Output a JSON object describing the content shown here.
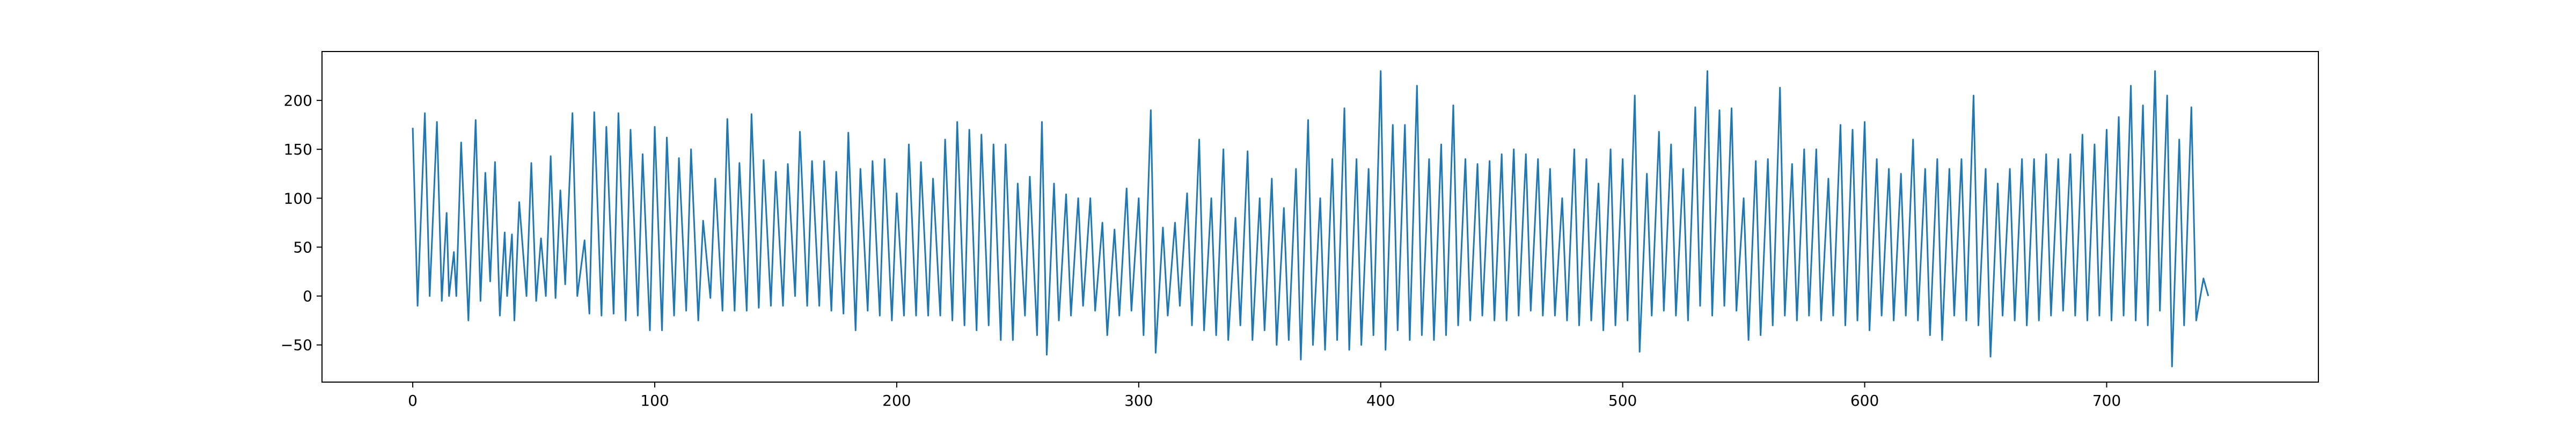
{
  "chart_data": {
    "type": "line",
    "title": "",
    "xlabel": "",
    "ylabel": "",
    "xlim": [
      -37.5,
      787.5
    ],
    "ylim": [
      -88,
      250
    ],
    "grid": false,
    "legend": "none",
    "line_color": "#1f77b4",
    "x_ticks": [
      0,
      100,
      200,
      300,
      400,
      500,
      600,
      700
    ],
    "x_tick_labels": [
      "0",
      "100",
      "200",
      "300",
      "400",
      "500",
      "600",
      "700"
    ],
    "y_ticks": [
      -50,
      0,
      50,
      100,
      150,
      200
    ],
    "y_tick_labels": [
      "−50",
      "0",
      "50",
      "100",
      "150",
      "200"
    ],
    "series": [
      {
        "peaks": [
          [
            0,
            172
          ],
          [
            5,
            187
          ],
          [
            10,
            178
          ],
          [
            14,
            85
          ],
          [
            17,
            45
          ],
          [
            20,
            157
          ],
          [
            26,
            180
          ],
          [
            30,
            126
          ],
          [
            34,
            137
          ],
          [
            38,
            65
          ],
          [
            41,
            63
          ],
          [
            44,
            96
          ],
          [
            49,
            136
          ],
          [
            53,
            59
          ],
          [
            57,
            143
          ],
          [
            61,
            108
          ],
          [
            66,
            187
          ],
          [
            71,
            57
          ],
          [
            75,
            188
          ],
          [
            80,
            173
          ],
          [
            85,
            187
          ],
          [
            90,
            170
          ],
          [
            95,
            145
          ],
          [
            100,
            173
          ],
          [
            105,
            162
          ],
          [
            110,
            141
          ],
          [
            115,
            150
          ],
          [
            120,
            77
          ],
          [
            125,
            120
          ],
          [
            130,
            181
          ],
          [
            135,
            136
          ],
          [
            140,
            186
          ],
          [
            145,
            139
          ],
          [
            150,
            127
          ],
          [
            155,
            135
          ],
          [
            160,
            168
          ],
          [
            165,
            138
          ],
          [
            170,
            138
          ],
          [
            175,
            127
          ],
          [
            180,
            167
          ],
          [
            185,
            130
          ],
          [
            190,
            138
          ],
          [
            195,
            140
          ],
          [
            200,
            105
          ],
          [
            205,
            155
          ],
          [
            210,
            137
          ],
          [
            215,
            120
          ],
          [
            220,
            160
          ],
          [
            225,
            178
          ],
          [
            230,
            170
          ],
          [
            235,
            165
          ],
          [
            240,
            155
          ],
          [
            245,
            155
          ],
          [
            250,
            115
          ],
          [
            255,
            122
          ],
          [
            260,
            178
          ],
          [
            265,
            115
          ],
          [
            270,
            104
          ],
          [
            275,
            100
          ],
          [
            280,
            100
          ],
          [
            285,
            75
          ],
          [
            290,
            68
          ],
          [
            295,
            110
          ],
          [
            300,
            100
          ],
          [
            305,
            190
          ],
          [
            310,
            70
          ],
          [
            315,
            75
          ],
          [
            320,
            105
          ],
          [
            325,
            160
          ],
          [
            330,
            100
          ],
          [
            335,
            150
          ],
          [
            340,
            80
          ],
          [
            345,
            148
          ],
          [
            350,
            100
          ],
          [
            355,
            120
          ],
          [
            360,
            90
          ],
          [
            365,
            130
          ],
          [
            370,
            180
          ],
          [
            375,
            100
          ],
          [
            380,
            140
          ],
          [
            385,
            192
          ],
          [
            390,
            140
          ],
          [
            395,
            130
          ],
          [
            400,
            230
          ],
          [
            405,
            175
          ],
          [
            410,
            175
          ],
          [
            415,
            215
          ],
          [
            420,
            140
          ],
          [
            425,
            155
          ],
          [
            430,
            195
          ],
          [
            435,
            140
          ],
          [
            440,
            135
          ],
          [
            445,
            138
          ],
          [
            450,
            145
          ],
          [
            455,
            150
          ],
          [
            460,
            145
          ],
          [
            465,
            140
          ],
          [
            470,
            130
          ],
          [
            475,
            100
          ],
          [
            480,
            150
          ],
          [
            485,
            140
          ],
          [
            490,
            115
          ],
          [
            495,
            150
          ],
          [
            500,
            140
          ],
          [
            505,
            205
          ],
          [
            510,
            125
          ],
          [
            515,
            168
          ],
          [
            520,
            155
          ],
          [
            525,
            130
          ],
          [
            530,
            193
          ],
          [
            535,
            230
          ],
          [
            540,
            190
          ],
          [
            545,
            192
          ],
          [
            550,
            100
          ],
          [
            555,
            138
          ],
          [
            560,
            140
          ],
          [
            565,
            213
          ],
          [
            570,
            135
          ],
          [
            575,
            150
          ],
          [
            580,
            150
          ],
          [
            585,
            120
          ],
          [
            590,
            175
          ],
          [
            595,
            170
          ],
          [
            600,
            178
          ],
          [
            605,
            140
          ],
          [
            610,
            130
          ],
          [
            615,
            125
          ],
          [
            620,
            160
          ],
          [
            625,
            130
          ],
          [
            630,
            140
          ],
          [
            635,
            130
          ],
          [
            640,
            140
          ],
          [
            645,
            205
          ],
          [
            650,
            130
          ],
          [
            655,
            115
          ],
          [
            660,
            130
          ],
          [
            665,
            140
          ],
          [
            670,
            140
          ],
          [
            675,
            145
          ],
          [
            680,
            140
          ],
          [
            685,
            145
          ],
          [
            690,
            165
          ],
          [
            695,
            155
          ],
          [
            700,
            170
          ],
          [
            705,
            183
          ],
          [
            710,
            215
          ],
          [
            715,
            195
          ],
          [
            720,
            230
          ],
          [
            725,
            205
          ],
          [
            730,
            160
          ],
          [
            735,
            193
          ],
          [
            740,
            18
          ]
        ],
        "troughs": [
          [
            2,
            -10
          ],
          [
            7,
            0
          ],
          [
            12,
            -5
          ],
          [
            15,
            0
          ],
          [
            18,
            0
          ],
          [
            23,
            -25
          ],
          [
            28,
            -5
          ],
          [
            32,
            15
          ],
          [
            36,
            -20
          ],
          [
            39,
            0
          ],
          [
            42,
            -25
          ],
          [
            47,
            0
          ],
          [
            51,
            -5
          ],
          [
            55,
            0
          ],
          [
            59,
            -2
          ],
          [
            63,
            12
          ],
          [
            68,
            0
          ],
          [
            73,
            -18
          ],
          [
            78,
            -20
          ],
          [
            83,
            -18
          ],
          [
            88,
            -25
          ],
          [
            93,
            -20
          ],
          [
            98,
            -35
          ],
          [
            103,
            -35
          ],
          [
            108,
            -20
          ],
          [
            113,
            -15
          ],
          [
            118,
            -25
          ],
          [
            123,
            -2
          ],
          [
            128,
            -15
          ],
          [
            133,
            -15
          ],
          [
            138,
            -15
          ],
          [
            143,
            -12
          ],
          [
            148,
            -10
          ],
          [
            153,
            -10
          ],
          [
            158,
            0
          ],
          [
            163,
            -10
          ],
          [
            168,
            -10
          ],
          [
            173,
            -15
          ],
          [
            178,
            -18
          ],
          [
            183,
            -35
          ],
          [
            188,
            -15
          ],
          [
            193,
            -20
          ],
          [
            198,
            -25
          ],
          [
            203,
            -20
          ],
          [
            208,
            -20
          ],
          [
            213,
            -20
          ],
          [
            218,
            -20
          ],
          [
            223,
            -25
          ],
          [
            228,
            -30
          ],
          [
            233,
            -35
          ],
          [
            238,
            -30
          ],
          [
            243,
            -45
          ],
          [
            248,
            -45
          ],
          [
            253,
            -20
          ],
          [
            258,
            -40
          ],
          [
            262,
            -60
          ],
          [
            267,
            -25
          ],
          [
            272,
            -20
          ],
          [
            277,
            -10
          ],
          [
            282,
            -15
          ],
          [
            287,
            -40
          ],
          [
            292,
            -20
          ],
          [
            297,
            -15
          ],
          [
            302,
            -40
          ],
          [
            307,
            -58
          ],
          [
            312,
            -20
          ],
          [
            317,
            -10
          ],
          [
            322,
            -30
          ],
          [
            327,
            -35
          ],
          [
            332,
            -40
          ],
          [
            337,
            -45
          ],
          [
            342,
            -30
          ],
          [
            347,
            -45
          ],
          [
            352,
            -35
          ],
          [
            357,
            -50
          ],
          [
            362,
            -45
          ],
          [
            367,
            -65
          ],
          [
            372,
            -50
          ],
          [
            377,
            -55
          ],
          [
            382,
            -45
          ],
          [
            387,
            -55
          ],
          [
            392,
            -50
          ],
          [
            397,
            -40
          ],
          [
            402,
            -55
          ],
          [
            407,
            -35
          ],
          [
            412,
            -45
          ],
          [
            417,
            -40
          ],
          [
            422,
            -45
          ],
          [
            427,
            -40
          ],
          [
            432,
            -30
          ],
          [
            437,
            -25
          ],
          [
            442,
            -20
          ],
          [
            447,
            -25
          ],
          [
            452,
            -25
          ],
          [
            457,
            -20
          ],
          [
            462,
            -15
          ],
          [
            467,
            -20
          ],
          [
            472,
            -20
          ],
          [
            477,
            -25
          ],
          [
            482,
            -30
          ],
          [
            487,
            -25
          ],
          [
            492,
            -35
          ],
          [
            497,
            -30
          ],
          [
            502,
            -25
          ],
          [
            507,
            -57
          ],
          [
            512,
            -20
          ],
          [
            517,
            -15
          ],
          [
            522,
            -20
          ],
          [
            527,
            -25
          ],
          [
            532,
            -10
          ],
          [
            537,
            -20
          ],
          [
            542,
            -10
          ],
          [
            547,
            -15
          ],
          [
            552,
            -45
          ],
          [
            557,
            -40
          ],
          [
            562,
            -30
          ],
          [
            567,
            -20
          ],
          [
            572,
            -25
          ],
          [
            577,
            -20
          ],
          [
            582,
            -25
          ],
          [
            587,
            -20
          ],
          [
            592,
            -30
          ],
          [
            597,
            -25
          ],
          [
            602,
            -35
          ],
          [
            607,
            -20
          ],
          [
            612,
            -25
          ],
          [
            617,
            -20
          ],
          [
            622,
            -25
          ],
          [
            627,
            -40
          ],
          [
            632,
            -45
          ],
          [
            637,
            -20
          ],
          [
            642,
            -25
          ],
          [
            647,
            -30
          ],
          [
            652,
            -62
          ],
          [
            657,
            -20
          ],
          [
            662,
            -25
          ],
          [
            667,
            -30
          ],
          [
            672,
            -25
          ],
          [
            677,
            -20
          ],
          [
            682,
            -15
          ],
          [
            687,
            -20
          ],
          [
            692,
            -25
          ],
          [
            697,
            -20
          ],
          [
            702,
            -25
          ],
          [
            707,
            -20
          ],
          [
            712,
            -25
          ],
          [
            717,
            -30
          ],
          [
            722,
            -15
          ],
          [
            727,
            -72
          ],
          [
            732,
            -30
          ],
          [
            737,
            -25
          ],
          [
            742,
            0
          ]
        ]
      }
    ]
  }
}
